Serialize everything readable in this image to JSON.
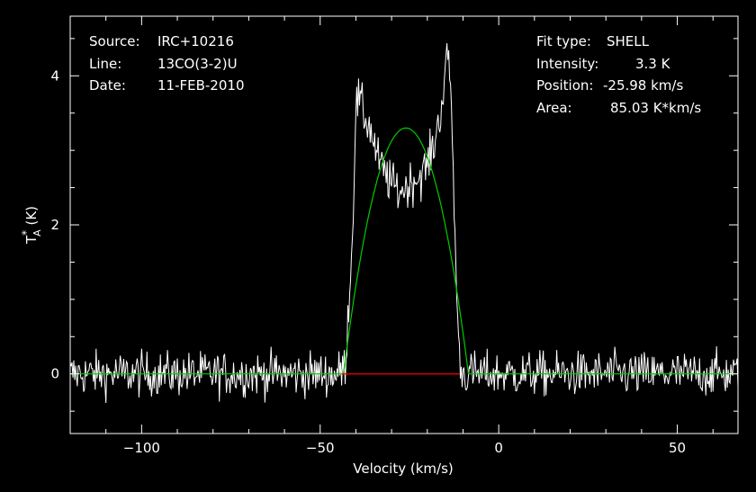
{
  "info_left": [
    {
      "key": "Source:",
      "value": "IRC+10216"
    },
    {
      "key": "Line:",
      "value": "13CO(3-2)U"
    },
    {
      "key": "Date:",
      "value": "11-FEB-2010"
    }
  ],
  "info_right": [
    {
      "key": "Fit type:",
      "value": "SHELL"
    },
    {
      "key": "Intensity:",
      "value": "3.3 K"
    },
    {
      "key": "Position:",
      "value": "-25.98 km/s"
    },
    {
      "key": "Area:",
      "value": "85.03 K*km/s"
    }
  ],
  "colors": {
    "background": "#000000",
    "axes": "#ffffff",
    "spectrum": "#ffffff",
    "fit": "#00cc00",
    "baseline": "#ff0000"
  },
  "chart_data": {
    "type": "line",
    "xlabel": "Velocity (km/s)",
    "ylabel": "T*A (K)",
    "xlim": [
      -120,
      67
    ],
    "ylim": [
      -0.8,
      4.8
    ],
    "x_ticks": [
      -100,
      -50,
      0,
      50
    ],
    "x_tick_labels": [
      "−100",
      "−50",
      "0",
      "50"
    ],
    "y_ticks": [
      0,
      2,
      4
    ],
    "y_tick_labels": [
      "0",
      "2",
      "4"
    ],
    "series": [
      {
        "role": "spectrum",
        "noise_rms": 0.15,
        "points": [
          [
            -120,
            0.0
          ],
          [
            -45,
            0.0
          ],
          [
            -43,
            0.1
          ],
          [
            -41,
            1.8
          ],
          [
            -40,
            3.6
          ],
          [
            -39,
            3.7
          ],
          [
            -38,
            3.5
          ],
          [
            -36,
            3.3
          ],
          [
            -34,
            2.9
          ],
          [
            -32,
            2.7
          ],
          [
            -30,
            2.55
          ],
          [
            -28,
            2.45
          ],
          [
            -26,
            2.5
          ],
          [
            -24,
            2.6
          ],
          [
            -22,
            2.65
          ],
          [
            -20,
            2.8
          ],
          [
            -18,
            3.1
          ],
          [
            -16,
            3.6
          ],
          [
            -15,
            4.0
          ],
          [
            -14,
            4.35
          ],
          [
            -13,
            3.2
          ],
          [
            -12,
            1.4
          ],
          [
            -11,
            0.2
          ],
          [
            -10,
            0.0
          ],
          [
            67,
            0.0
          ]
        ]
      },
      {
        "role": "fit",
        "shape": "SHELL",
        "center": -25.98,
        "half_width": 17.5,
        "peak": 3.3
      },
      {
        "role": "baseline",
        "x_range": [
          -44,
          -11
        ],
        "value": 0
      }
    ]
  }
}
